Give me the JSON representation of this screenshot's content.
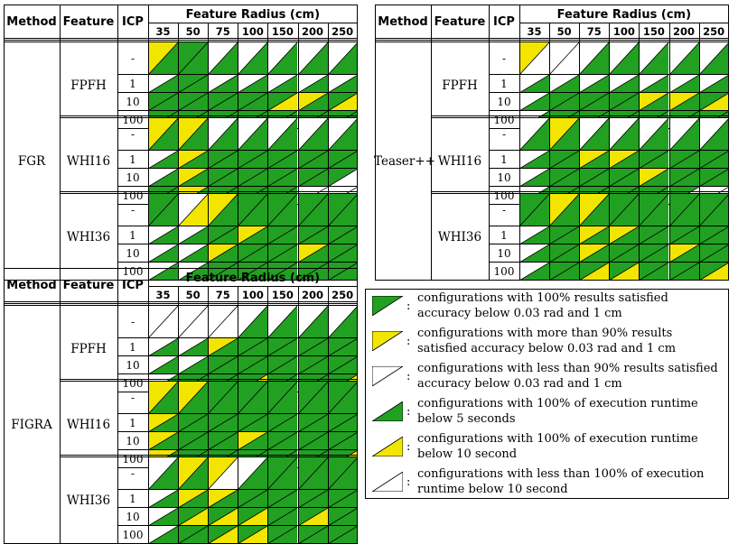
{
  "colors": {
    "green": "#22a022",
    "yellow": "#f2e600",
    "white": "#ffffff"
  },
  "headers": {
    "method": "Method",
    "feature": "Feature",
    "icp": "ICP",
    "radius_title": "Feature Radius (cm)"
  },
  "radii": [
    "35",
    "50",
    "75",
    "100",
    "150",
    "200",
    "250"
  ],
  "icp_levels": [
    "-",
    "1",
    "10",
    "100"
  ],
  "features": [
    "FPFH",
    "WHI16",
    "WHI36"
  ],
  "methods": [
    {
      "name": "FGR",
      "cells": {
        "FPFH": [
          [
            "YG",
            "GG",
            "WG",
            "WG",
            "WG",
            "WG",
            "WG"
          ],
          [
            "WG",
            "GG",
            "WG",
            "WG",
            "WG",
            "WG",
            "WG"
          ],
          [
            "GG",
            "GG",
            "GG",
            "GG",
            "GY",
            "YG",
            "GY"
          ],
          [
            "GG",
            "GG",
            "GG",
            "GG",
            "GG",
            "GG",
            "GG"
          ]
        ],
        "WHI16": [
          [
            "YG",
            "YG",
            "WG",
            "WG",
            "WG",
            "WG",
            "WG"
          ],
          [
            "WG",
            "YG",
            "GG",
            "GG",
            "GG",
            "GG",
            "GG"
          ],
          [
            "WG",
            "YG",
            "GG",
            "GG",
            "GG",
            "GG",
            "GW"
          ],
          [
            "GG",
            "YG",
            "GG",
            "GG",
            "GG",
            "WW",
            "WW"
          ]
        ],
        "WHI36": [
          [
            "GG",
            "WY",
            "YG",
            "GG",
            "GG",
            "GG",
            "GG"
          ],
          [
            "WG",
            "WG",
            "GG",
            "YG",
            "GG",
            "GG",
            "GG"
          ],
          [
            "WG",
            "WG",
            "YG",
            "GG",
            "GG",
            "YG",
            "GG"
          ],
          [
            "WG",
            "WG",
            "GG",
            "GG",
            "GG",
            "GG",
            "GG"
          ]
        ]
      }
    },
    {
      "name": "Teaser++",
      "cells": {
        "FPFH": [
          [
            "YW",
            "WW",
            "WG",
            "WG",
            "WG",
            "WG",
            "WG"
          ],
          [
            "WG",
            "WG",
            "WG",
            "WG",
            "WG",
            "WG",
            "WG"
          ],
          [
            "WG",
            "GG",
            "GG",
            "GG",
            "YG",
            "YG",
            "GY"
          ],
          [
            "WG",
            "GG",
            "GG",
            "GG",
            "GG",
            "GG",
            "GG"
          ]
        ],
        "WHI16": [
          [
            "WG",
            "YG",
            "WG",
            "WG",
            "WG",
            "WG",
            "WG"
          ],
          [
            "WG",
            "GG",
            "YG",
            "YG",
            "GG",
            "GG",
            "GG"
          ],
          [
            "WG",
            "GG",
            "GG",
            "GG",
            "YG",
            "GG",
            "GG"
          ],
          [
            "WG",
            "GG",
            "GG",
            "GG",
            "GG",
            "GW",
            "WW"
          ]
        ],
        "WHI36": [
          [
            "GG",
            "YG",
            "YG",
            "GG",
            "GG",
            "GG",
            "GG"
          ],
          [
            "WG",
            "GG",
            "YG",
            "YG",
            "GG",
            "GG",
            "GG"
          ],
          [
            "WG",
            "GG",
            "YG",
            "GG",
            "GG",
            "YG",
            "GG"
          ],
          [
            "WG",
            "GG",
            "GY",
            "GY",
            "GG",
            "GG",
            "GY"
          ]
        ]
      }
    },
    {
      "name": "FIGRA",
      "cells": {
        "FPFH": [
          [
            "WW",
            "WW",
            "WW",
            "WG",
            "WG",
            "WG",
            "WG"
          ],
          [
            "WG",
            "WG",
            "YG",
            "GG",
            "GG",
            "GG",
            "GG"
          ],
          [
            "WG",
            "WG",
            "GG",
            "GG",
            "GG",
            "GG",
            "GG"
          ],
          [
            "WG",
            "GG",
            "GG",
            "GY",
            "GG",
            "GG",
            "GY"
          ]
        ],
        "WHI16": [
          [
            "YG",
            "YG",
            "GG",
            "GG",
            "GG",
            "GG",
            "GG"
          ],
          [
            "YG",
            "GG",
            "GG",
            "GG",
            "GG",
            "GG",
            "GG"
          ],
          [
            "YG",
            "GG",
            "GG",
            "YG",
            "GG",
            "GG",
            "GG"
          ],
          [
            "YG",
            "GG",
            "GG",
            "GG",
            "GG",
            "GG",
            "GY"
          ]
        ],
        "WHI36": [
          [
            "WG",
            "YG",
            "YW",
            "WG",
            "GG",
            "GG",
            "GG"
          ],
          [
            "WG",
            "YG",
            "YG",
            "GG",
            "GG",
            "GG",
            "GG"
          ],
          [
            "WG",
            "GY",
            "GY",
            "GY",
            "GG",
            "GY",
            "GG"
          ],
          [
            "WG",
            "GG",
            "GY",
            "GY",
            "GG",
            "GG",
            "GG"
          ]
        ]
      }
    }
  ],
  "legend": [
    {
      "shape": "TL",
      "color": "green",
      "text": "configurations with 100% results satisfied accuracy below 0.03 rad and 1 cm"
    },
    {
      "shape": "TL",
      "color": "yellow",
      "text": "configurations with more than 90% results satisfied accuracy below 0.03 rad and 1 cm"
    },
    {
      "shape": "TL",
      "color": "white",
      "text": "configurations with less than 90% results satisfied accuracy below 0.03 rad and 1 cm"
    },
    {
      "shape": "BR",
      "color": "green",
      "text": "configurations with 100% of execution runtime below 5 seconds"
    },
    {
      "shape": "BR",
      "color": "yellow",
      "text": "configurations with 100% of execution runtime below 10 second"
    },
    {
      "shape": "BR",
      "color": "white",
      "text": "configurations with less than 100% of execution runtime below 10 second"
    }
  ],
  "legend_colon": ":"
}
